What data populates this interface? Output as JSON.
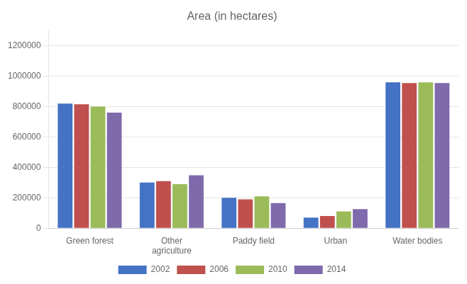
{
  "chart_data": {
    "type": "bar",
    "title": "Area (in hectares)",
    "categories": [
      "Green forest",
      "Other\nagriculture",
      "Paddy field",
      "Urban",
      "Water bodies"
    ],
    "series": [
      {
        "name": "2002",
        "color": "#4472c4",
        "values": [
          820000,
          300000,
          200000,
          70000,
          960000
        ]
      },
      {
        "name": "2006",
        "color": "#c0504d",
        "values": [
          815000,
          310000,
          190000,
          80000,
          955000
        ]
      },
      {
        "name": "2010",
        "color": "#9bbb59",
        "values": [
          800000,
          290000,
          210000,
          110000,
          960000
        ]
      },
      {
        "name": "2014",
        "color": "#7f6aab",
        "values": [
          760000,
          348000,
          165000,
          125000,
          955000
        ]
      }
    ],
    "ylim": [
      0,
      1300000
    ],
    "yticks": [
      0,
      200000,
      400000,
      600000,
      800000,
      1000000,
      1200000
    ],
    "grid": true,
    "legend": "bottom"
  }
}
